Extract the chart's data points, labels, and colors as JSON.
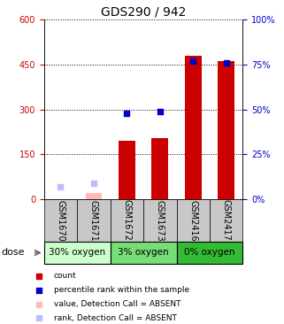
{
  "title": "GDS290 / 942",
  "samples": [
    "GSM1670",
    "GSM1671",
    "GSM1672",
    "GSM1673",
    "GSM2416",
    "GSM2417"
  ],
  "groups": [
    {
      "label": "30% oxygen",
      "color": "#ccffcc",
      "start": 0,
      "end": 2
    },
    {
      "label": "3% oxygen",
      "color": "#77dd77",
      "start": 2,
      "end": 4
    },
    {
      "label": "0% oxygen",
      "color": "#33bb33",
      "start": 4,
      "end": 6
    }
  ],
  "count_values": [
    0,
    20,
    195,
    205,
    480,
    460
  ],
  "rank_values": [
    7,
    9,
    48,
    49,
    77,
    76
  ],
  "absent_count": [
    0,
    20,
    0,
    0,
    0,
    0
  ],
  "absent_rank": [
    7,
    9,
    0,
    0,
    0,
    0
  ],
  "present_flags": [
    false,
    false,
    true,
    true,
    true,
    true
  ],
  "ylim_left": [
    0,
    600
  ],
  "ylim_right": [
    0,
    100
  ],
  "yticks_left": [
    0,
    150,
    300,
    450,
    600
  ],
  "yticks_right": [
    0,
    25,
    50,
    75,
    100
  ],
  "left_color": "#cc0000",
  "right_color": "#0000cc",
  "bar_color": "#cc0000",
  "rank_color": "#0000cc",
  "absent_bar_color": "#ffbbbb",
  "absent_rank_color": "#bbbbff",
  "bar_width": 0.5,
  "rank_dot_size": 18,
  "title_fontsize": 10,
  "tick_fontsize": 7,
  "label_fontsize": 7,
  "legend_fontsize": 6.5,
  "dose_fontsize": 8,
  "group_fontsize": 7.5
}
